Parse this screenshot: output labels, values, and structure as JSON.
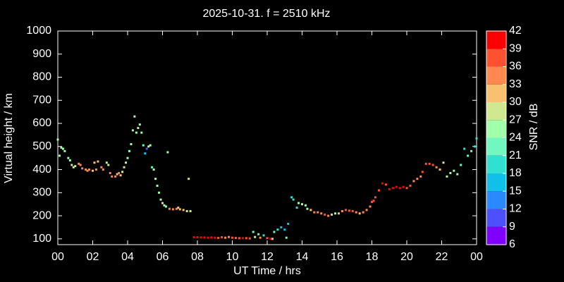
{
  "chart_data": {
    "type": "scatter",
    "title": "2025-10-31. f = 2510 kHz",
    "xlabel": "UT Time / hrs",
    "ylabel": "Virtual height / km",
    "xlim": [
      0,
      24
    ],
    "ylim": [
      75,
      1000
    ],
    "xticks": [
      {
        "value": 0,
        "label": "00"
      },
      {
        "value": 2,
        "label": "02"
      },
      {
        "value": 4,
        "label": "04"
      },
      {
        "value": 6,
        "label": "06"
      },
      {
        "value": 8,
        "label": "08"
      },
      10,
      12,
      14,
      16,
      18,
      20,
      22,
      {
        "value": 24,
        "label": "00"
      }
    ],
    "yticks": [
      100,
      200,
      300,
      400,
      500,
      600,
      700,
      800,
      900,
      1000
    ],
    "x": [
      0,
      0.1,
      0.2,
      0.3,
      0.4,
      0.6,
      0.7,
      0.8,
      0.9,
      1.0,
      1.2,
      1.3,
      1.4,
      1.6,
      1.7,
      1.8,
      2.0,
      2.1,
      2.2,
      2.3,
      2.5,
      2.6,
      2.8,
      2.9,
      3.0,
      3.1,
      3.3,
      3.4,
      3.5,
      3.6,
      3.7,
      3.8,
      3.9,
      4.0,
      4.1,
      4.2,
      4.3,
      4.4,
      4.5,
      4.6,
      4.7,
      4.8,
      4.9,
      5.0,
      5.1,
      5.2,
      5.3,
      5.4,
      5.5,
      5.6,
      5.7,
      5.8,
      5.9,
      6.0,
      6.1,
      6.2,
      6.3,
      6.4,
      6.6,
      6.8,
      6.9,
      7.0,
      7.2,
      7.4,
      7.6,
      7.5,
      7.8,
      8.0,
      8.2,
      8.4,
      8.6,
      8.8,
      9.0,
      9.2,
      9.4,
      9.6,
      9.8,
      10.0,
      10.2,
      10.4,
      10.6,
      10.8,
      11.0,
      11.2,
      11.3,
      11.5,
      11.6,
      11.8,
      12.0,
      12.2,
      12.3,
      12.4,
      12.6,
      12.8,
      13.0,
      13.1,
      13.2,
      13.4,
      13.5,
      13.7,
      13.8,
      14.0,
      14.2,
      14.3,
      14.5,
      14.7,
      14.9,
      15.1,
      15.3,
      15.5,
      15.7,
      15.9,
      16.1,
      16.3,
      16.5,
      16.7,
      16.9,
      17.1,
      17.3,
      17.5,
      17.7,
      17.9,
      18.0,
      18.1,
      18.2,
      18.4,
      18.6,
      18.8,
      19.0,
      19.2,
      19.4,
      19.6,
      19.8,
      20.0,
      20.2,
      20.4,
      20.6,
      20.8,
      20.9,
      21.1,
      21.3,
      21.5,
      21.7,
      21.9,
      22.1,
      22.3,
      22.5,
      22.7,
      22.9,
      23.1,
      23.3,
      23.5,
      23.7,
      23.9,
      24.0
    ],
    "values": [
      530,
      460,
      495,
      490,
      480,
      450,
      440,
      420,
      410,
      415,
      425,
      420,
      405,
      400,
      395,
      400,
      395,
      430,
      400,
      435,
      410,
      400,
      430,
      420,
      385,
      370,
      370,
      380,
      385,
      375,
      390,
      410,
      430,
      450,
      480,
      510,
      570,
      630,
      560,
      580,
      595,
      560,
      505,
      470,
      490,
      500,
      505,
      410,
      400,
      360,
      330,
      300,
      270,
      255,
      245,
      240,
      475,
      230,
      228,
      230,
      235,
      228,
      225,
      220,
      220,
      360,
      107,
      107,
      106,
      106,
      105,
      106,
      105,
      104,
      107,
      105,
      108,
      105,
      104,
      103,
      103,
      103,
      102,
      130,
      108,
      120,
      105,
      115,
      103,
      100,
      100,
      130,
      140,
      150,
      140,
      105,
      165,
      280,
      270,
      235,
      255,
      250,
      245,
      230,
      225,
      215,
      215,
      210,
      205,
      200,
      205,
      210,
      210,
      220,
      225,
      222,
      220,
      215,
      210,
      215,
      225,
      240,
      260,
      265,
      280,
      310,
      340,
      335,
      315,
      320,
      325,
      320,
      325,
      320,
      330,
      350,
      360,
      370,
      390,
      425,
      425,
      420,
      410,
      400,
      430,
      370,
      385,
      395,
      380,
      420,
      490,
      460,
      480,
      500,
      535
    ],
    "snr": [
      24,
      24,
      24,
      24,
      24,
      24,
      24,
      27,
      27,
      27,
      33,
      33,
      33,
      33,
      33,
      33,
      30,
      30,
      33,
      30,
      33,
      33,
      27,
      27,
      33,
      33,
      33,
      30,
      33,
      30,
      27,
      27,
      24,
      24,
      24,
      24,
      24,
      24,
      24,
      27,
      24,
      24,
      21,
      15,
      9,
      24,
      24,
      21,
      24,
      24,
      24,
      24,
      24,
      27,
      24,
      24,
      24,
      33,
      33,
      33,
      30,
      30,
      30,
      27,
      27,
      27,
      39,
      39,
      39,
      39,
      39,
      39,
      39,
      36,
      36,
      33,
      33,
      36,
      36,
      36,
      39,
      36,
      36,
      21,
      27,
      21,
      33,
      18,
      36,
      39,
      27,
      21,
      18,
      15,
      15,
      21,
      15,
      18,
      18,
      18,
      24,
      24,
      24,
      24,
      30,
      33,
      33,
      33,
      36,
      33,
      27,
      24,
      30,
      33,
      36,
      36,
      36,
      33,
      30,
      33,
      33,
      33,
      36,
      36,
      36,
      36,
      39,
      36,
      39,
      39,
      39,
      39,
      39,
      36,
      36,
      33,
      33,
      33,
      36,
      36,
      36,
      36,
      33,
      30,
      27,
      24,
      24,
      24,
      24,
      21,
      18,
      21,
      21,
      18,
      18
    ],
    "colorbar": {
      "label": "SNR / dB",
      "ticks": [
        6,
        9,
        12,
        15,
        18,
        21,
        24,
        27,
        30,
        33,
        36,
        39,
        42
      ],
      "colors": [
        "#8000ff",
        "#4c50ff",
        "#2c88ff",
        "#10c0e8",
        "#30e0d0",
        "#70f8c0",
        "#a0ffa8",
        "#d0e890",
        "#f8c070",
        "#ff8850",
        "#ff5030",
        "#ff0000"
      ]
    }
  }
}
